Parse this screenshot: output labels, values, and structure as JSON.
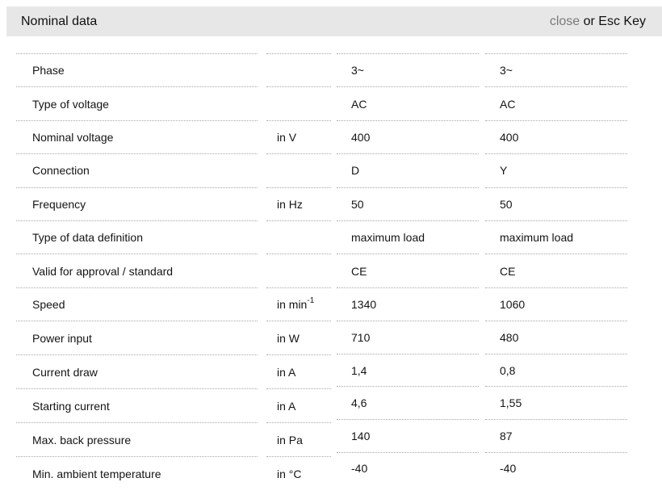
{
  "header": {
    "title": "Nominal data",
    "close_label": "close",
    "close_suffix": " or Esc Key"
  },
  "colors": {
    "header_bg": "#e7e7e7",
    "close_link": "#7a7a7a",
    "text": "#141414",
    "row_separator": "#a8a8a8"
  },
  "table": {
    "rows": [
      {
        "label": "Phase",
        "unit": "",
        "unit_sup": "",
        "values": [
          "3~",
          "3~"
        ]
      },
      {
        "label": "Type of voltage",
        "unit": "",
        "unit_sup": "",
        "values": [
          "AC",
          "AC"
        ]
      },
      {
        "label": "Nominal voltage",
        "unit": "in V",
        "unit_sup": "",
        "values": [
          "400",
          "400"
        ]
      },
      {
        "label": "Connection",
        "unit": "",
        "unit_sup": "",
        "values": [
          "D",
          "Y"
        ]
      },
      {
        "label": "Frequency",
        "unit": "in Hz",
        "unit_sup": "",
        "values": [
          "50",
          "50"
        ]
      },
      {
        "label": "Type of data definition",
        "unit": "",
        "unit_sup": "",
        "values": [
          "maximum load",
          "maximum load"
        ]
      },
      {
        "label": "Valid for approval / standard",
        "unit": "",
        "unit_sup": "",
        "values": [
          "CE",
          "CE"
        ]
      },
      {
        "label": "Speed",
        "unit": "in min",
        "unit_sup": "-1",
        "values": [
          "1340",
          "1060"
        ]
      },
      {
        "label": "Power input",
        "unit": "in W",
        "unit_sup": "",
        "values": [
          "710",
          "480"
        ]
      },
      {
        "label": "Current draw",
        "unit": "in A",
        "unit_sup": "",
        "values": [
          "1,4",
          "0,8"
        ]
      },
      {
        "label": "Starting current",
        "unit": "in A",
        "unit_sup": "",
        "values": [
          "4,6",
          "1,55"
        ]
      },
      {
        "label": "Max. back pressure",
        "unit": "in Pa",
        "unit_sup": "",
        "values": [
          "140",
          "87"
        ]
      },
      {
        "label": "Min. ambient temperature",
        "unit": "in °C",
        "unit_sup": "",
        "values": [
          "-40",
          "-40"
        ]
      }
    ]
  }
}
